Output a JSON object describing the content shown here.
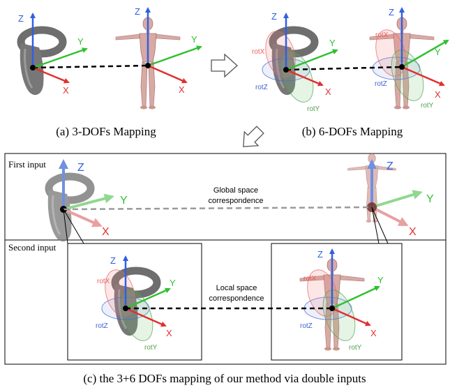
{
  "captions": {
    "a": "(a) 3-DOFs Mapping",
    "b": "(b) 6-DOFs Mapping",
    "c": "(c) the 3+6 DOFs mapping of our method via double inputs"
  },
  "axes": {
    "x": "X",
    "y": "Y",
    "z": "Z"
  },
  "rotations": {
    "x": "rotX",
    "y": "rotY",
    "z": "rotZ"
  },
  "panel_c": {
    "first_input": "First input",
    "second_input": "Second input",
    "global_line1": "Global space",
    "global_line2": "correspondence",
    "local_line1": "Local space",
    "local_line2": "correspondence"
  },
  "colors": {
    "x_axis": "#e03030",
    "y_axis": "#30c030",
    "z_axis": "#3060e0",
    "rotx": "#e86060",
    "roty": "#50a050",
    "rotz": "#4060d0",
    "controller": "#6e6e6e",
    "mannequin": "#d9a9a4"
  },
  "icons": [
    "right-arrow-icon",
    "down-left-arrow-icon"
  ]
}
